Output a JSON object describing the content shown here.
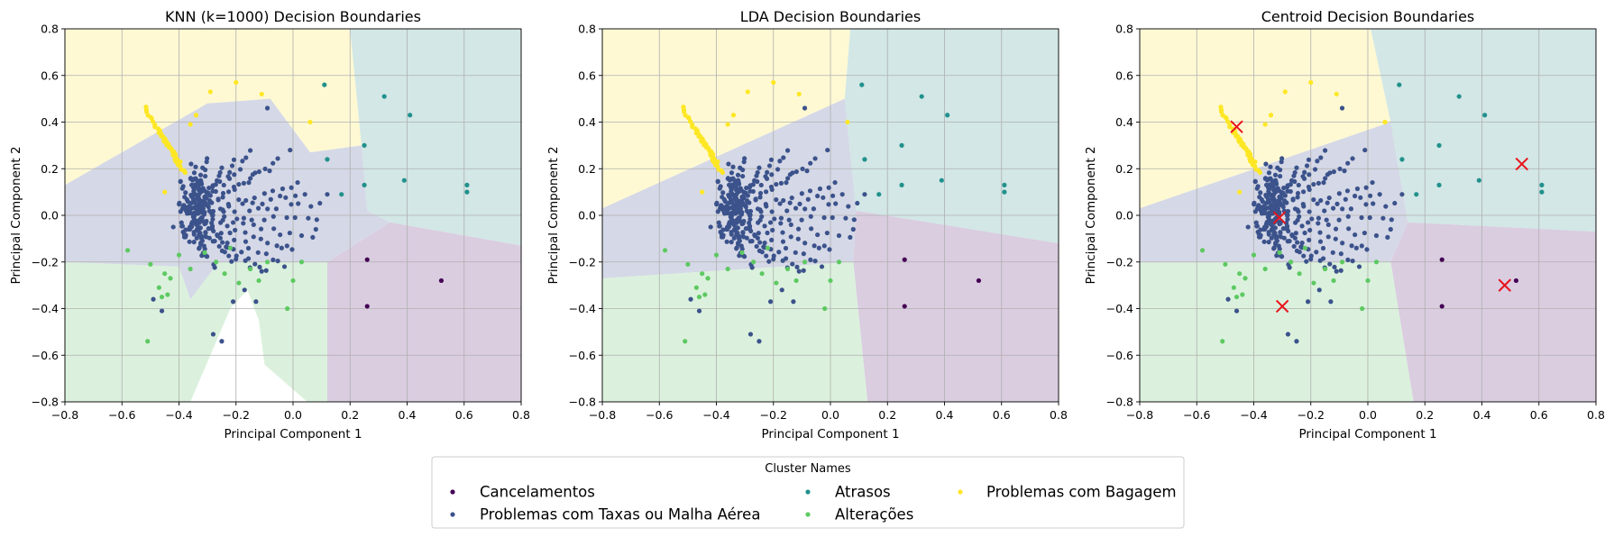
{
  "figure": {
    "legend": {
      "title": "Cluster Names",
      "entries": [
        {
          "label": "Cancelamentos",
          "color": "#440154"
        },
        {
          "label": "Problemas com Taxas ou Malha Aérea",
          "color": "#3b528b"
        },
        {
          "label": "Atrasos",
          "color": "#21918c"
        },
        {
          "label": "Alterações",
          "color": "#5ec962"
        },
        {
          "label": "Problemas com Bagagem",
          "color": "#fde725"
        }
      ]
    },
    "region_colors": {
      "Cancelamentos": "#dacde0",
      "Problemas com Taxas ou Malha Aérea": "#d5d8e6",
      "Atrasos": "#d2e7e6",
      "Alterações": "#dbf1dd",
      "Problemas com Bagagem": "#fef9d3"
    },
    "centroid_marker_color": "#e8131b"
  },
  "chart_data": [
    {
      "type": "scatter",
      "title": "KNN (k=1000) Decision Boundaries",
      "xlabel": "Principal Component 1",
      "ylabel": "Principal Component 2",
      "xlim": [
        -0.8,
        0.8
      ],
      "ylim": [
        -0.8,
        0.8
      ],
      "xticks": [
        "−0.8",
        "−0.6",
        "−0.4",
        "−0.2",
        "0.0",
        "0.2",
        "0.4",
        "0.6",
        "0.8"
      ],
      "yticks": [
        "−0.8",
        "−0.6",
        "−0.4",
        "−0.2",
        "0.0",
        "0.2",
        "0.4",
        "0.6",
        "0.8"
      ],
      "grid": true,
      "regions": [
        {
          "class": "Problemas com Bagagem",
          "polygon": [
            [
              -0.8,
              0.8
            ],
            [
              0.2,
              0.8
            ],
            [
              0.24,
              0.3
            ],
            [
              0.06,
              0.27
            ],
            [
              -0.08,
              0.5
            ],
            [
              -0.3,
              0.48
            ],
            [
              -0.8,
              0.13
            ]
          ]
        },
        {
          "class": "Atrasos",
          "polygon": [
            [
              0.2,
              0.8
            ],
            [
              0.8,
              0.8
            ],
            [
              0.8,
              -0.13
            ],
            [
              0.34,
              -0.03
            ],
            [
              0.26,
              0.02
            ],
            [
              0.24,
              0.3
            ]
          ]
        },
        {
          "class": "Cancelamentos",
          "polygon": [
            [
              0.8,
              -0.13
            ],
            [
              0.34,
              -0.03
            ],
            [
              0.12,
              -0.2
            ],
            [
              0.12,
              -0.8
            ],
            [
              0.8,
              -0.8
            ]
          ]
        },
        {
          "class": "Alterações",
          "polygon": [
            [
              -0.8,
              -0.2
            ],
            [
              -0.4,
              -0.22
            ],
            [
              -0.36,
              -0.36
            ],
            [
              -0.26,
              -0.2
            ],
            [
              -0.12,
              -0.2
            ],
            [
              0.12,
              -0.2
            ],
            [
              0.12,
              -0.8
            ],
            [
              0.05,
              -0.8
            ],
            [
              -0.1,
              -0.64
            ],
            [
              -0.12,
              -0.45
            ],
            [
              -0.16,
              -0.32
            ],
            [
              -0.22,
              -0.4
            ],
            [
              -0.36,
              -0.8
            ],
            [
              -0.8,
              -0.8
            ]
          ]
        },
        {
          "class": "Problemas com Taxas ou Malha Aérea",
          "polygon": [
            [
              -0.8,
              0.13
            ],
            [
              -0.3,
              0.48
            ],
            [
              -0.08,
              0.5
            ],
            [
              0.06,
              0.27
            ],
            [
              0.24,
              0.3
            ],
            [
              0.26,
              0.02
            ],
            [
              0.34,
              -0.03
            ],
            [
              0.12,
              -0.2
            ],
            [
              -0.12,
              -0.2
            ],
            [
              -0.26,
              -0.2
            ],
            [
              -0.36,
              -0.36
            ],
            [
              -0.4,
              -0.22
            ],
            [
              -0.8,
              -0.2
            ]
          ]
        }
      ],
      "centroids": []
    },
    {
      "type": "scatter",
      "title": "LDA Decision Boundaries",
      "xlabel": "Principal Component 1",
      "ylabel": "Principal Component 2",
      "xlim": [
        -0.8,
        0.8
      ],
      "ylim": [
        -0.8,
        0.8
      ],
      "xticks": [
        "−0.8",
        "−0.6",
        "−0.4",
        "−0.2",
        "0.0",
        "0.2",
        "0.4",
        "0.6",
        "0.8"
      ],
      "yticks": [
        "−0.8",
        "−0.6",
        "−0.4",
        "−0.2",
        "0.0",
        "0.2",
        "0.4",
        "0.6",
        "0.8"
      ],
      "grid": true,
      "regions": [
        {
          "class": "Problemas com Bagagem",
          "polygon": [
            [
              -0.8,
              0.8
            ],
            [
              0.07,
              0.8
            ],
            [
              0.05,
              0.5
            ],
            [
              -0.8,
              0.03
            ]
          ]
        },
        {
          "class": "Atrasos",
          "polygon": [
            [
              0.07,
              0.8
            ],
            [
              0.8,
              0.8
            ],
            [
              0.8,
              -0.12
            ],
            [
              0.09,
              0.02
            ],
            [
              0.05,
              0.5
            ]
          ]
        },
        {
          "class": "Cancelamentos",
          "polygon": [
            [
              0.8,
              -0.12
            ],
            [
              0.09,
              0.02
            ],
            [
              0.08,
              -0.2
            ],
            [
              0.13,
              -0.8
            ],
            [
              0.8,
              -0.8
            ]
          ]
        },
        {
          "class": "Alterações",
          "polygon": [
            [
              -0.8,
              -0.27
            ],
            [
              0.08,
              -0.2
            ],
            [
              0.13,
              -0.8
            ],
            [
              -0.8,
              -0.8
            ]
          ]
        },
        {
          "class": "Problemas com Taxas ou Malha Aérea",
          "polygon": [
            [
              -0.8,
              0.03
            ],
            [
              0.05,
              0.5
            ],
            [
              0.09,
              0.02
            ],
            [
              0.08,
              -0.2
            ],
            [
              -0.8,
              -0.27
            ]
          ]
        }
      ],
      "centroids": []
    },
    {
      "type": "scatter",
      "title": "Centroid Decision Boundaries",
      "xlabel": "Principal Component 1",
      "ylabel": "Principal Component 2",
      "xlim": [
        -0.8,
        0.8
      ],
      "ylim": [
        -0.8,
        0.8
      ],
      "xticks": [
        "−0.8",
        "−0.6",
        "−0.4",
        "−0.2",
        "0.0",
        "0.2",
        "0.4",
        "0.6",
        "0.8"
      ],
      "yticks": [
        "−0.8",
        "−0.6",
        "−0.4",
        "−0.2",
        "0.0",
        "0.2",
        "0.4",
        "0.6",
        "0.8"
      ],
      "grid": true,
      "regions": [
        {
          "class": "Problemas com Bagagem",
          "polygon": [
            [
              -0.8,
              0.8
            ],
            [
              0.01,
              0.8
            ],
            [
              0.08,
              0.4
            ],
            [
              -0.8,
              0.03
            ]
          ]
        },
        {
          "class": "Atrasos",
          "polygon": [
            [
              0.01,
              0.8
            ],
            [
              0.8,
              0.8
            ],
            [
              0.8,
              -0.07
            ],
            [
              0.14,
              -0.03
            ],
            [
              0.08,
              0.4
            ]
          ]
        },
        {
          "class": "Cancelamentos",
          "polygon": [
            [
              0.8,
              -0.07
            ],
            [
              0.14,
              -0.03
            ],
            [
              0.08,
              -0.2
            ],
            [
              0.16,
              -0.8
            ],
            [
              0.8,
              -0.8
            ]
          ]
        },
        {
          "class": "Alterações",
          "polygon": [
            [
              -0.8,
              -0.2
            ],
            [
              0.08,
              -0.2
            ],
            [
              0.16,
              -0.8
            ],
            [
              -0.8,
              -0.8
            ]
          ]
        },
        {
          "class": "Problemas com Taxas ou Malha Aérea",
          "polygon": [
            [
              -0.8,
              0.03
            ],
            [
              0.08,
              0.4
            ],
            [
              0.14,
              -0.03
            ],
            [
              0.08,
              -0.2
            ],
            [
              -0.8,
              -0.2
            ]
          ]
        }
      ],
      "centroids": [
        [
          -0.46,
          0.38
        ],
        [
          -0.31,
          -0.01
        ],
        [
          -0.3,
          -0.39
        ],
        [
          0.48,
          -0.3
        ],
        [
          0.54,
          0.22
        ]
      ]
    }
  ],
  "points": {
    "Cancelamentos": [
      [
        0.26,
        -0.19
      ],
      [
        0.26,
        -0.39
      ],
      [
        0.52,
        -0.28
      ]
    ],
    "Problemas com Taxas ou Malha Aérea": [
      [
        -0.49,
        -0.36
      ],
      [
        -0.46,
        -0.41
      ],
      [
        -0.42,
        -0.05
      ],
      [
        -0.28,
        -0.51
      ],
      [
        -0.25,
        -0.54
      ],
      [
        -0.21,
        -0.37
      ],
      [
        -0.17,
        -0.32
      ],
      [
        -0.13,
        -0.37
      ],
      [
        -0.11,
        -0.24
      ],
      [
        -0.04,
        -0.14
      ],
      [
        -0.03,
        -0.22
      ],
      [
        -0.09,
        0.46
      ],
      [
        0.08,
        -0.06
      ],
      [
        0.12,
        0.09
      ]
    ],
    "Atrasos": [
      [
        0.11,
        0.56
      ],
      [
        0.32,
        0.51
      ],
      [
        0.41,
        0.43
      ],
      [
        0.12,
        0.24
      ],
      [
        0.25,
        0.3
      ],
      [
        0.25,
        0.13
      ],
      [
        0.39,
        0.15
      ],
      [
        0.61,
        0.13
      ],
      [
        0.61,
        0.1
      ],
      [
        0.17,
        0.09
      ]
    ],
    "Alterações": [
      [
        -0.58,
        -0.15
      ],
      [
        -0.51,
        -0.54
      ],
      [
        -0.5,
        -0.21
      ],
      [
        -0.47,
        -0.31
      ],
      [
        -0.45,
        -0.25
      ],
      [
        -0.46,
        -0.35
      ],
      [
        -0.43,
        -0.27
      ],
      [
        -0.4,
        -0.17
      ],
      [
        -0.36,
        -0.23
      ],
      [
        -0.31,
        -0.16
      ],
      [
        -0.27,
        -0.2
      ],
      [
        -0.24,
        -0.25
      ],
      [
        -0.22,
        -0.14
      ],
      [
        -0.19,
        -0.29
      ],
      [
        -0.12,
        -0.28
      ],
      [
        -0.09,
        -0.2
      ],
      [
        -0.02,
        -0.4
      ],
      [
        0.0,
        -0.28
      ],
      [
        0.03,
        -0.2
      ],
      [
        -0.15,
        -0.23
      ],
      [
        -0.44,
        -0.34
      ]
    ],
    "Problemas com Bagagem": [
      [
        -0.2,
        0.57
      ],
      [
        -0.29,
        0.53
      ],
      [
        -0.34,
        0.43
      ],
      [
        -0.36,
        0.39
      ],
      [
        -0.45,
        0.1
      ],
      [
        -0.11,
        0.52
      ],
      [
        0.06,
        0.4
      ]
    ]
  }
}
